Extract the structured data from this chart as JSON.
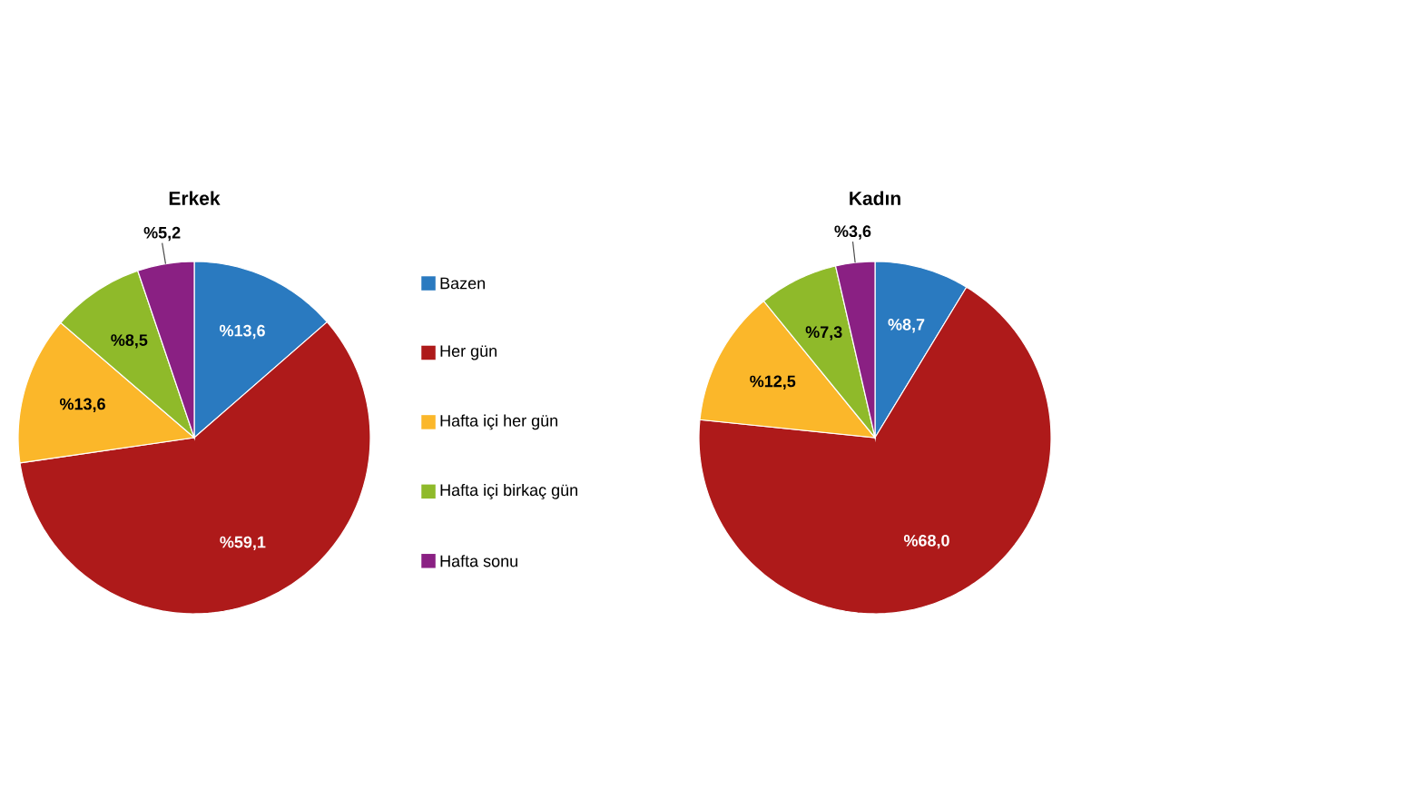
{
  "chart_data": [
    {
      "type": "pie",
      "title": "Erkek",
      "categories": [
        "Bazen",
        "Her gün",
        "Hafta içi her gün",
        "Hafta içi birkaç gün",
        "Hafta sonu"
      ],
      "values": [
        13.6,
        59.1,
        13.6,
        8.5,
        5.2
      ],
      "value_labels": [
        "%13,6",
        "%59,1",
        "%13,6",
        "%8,5",
        "%5,2"
      ],
      "colors": [
        "#2a7ac0",
        "#ae1a1a",
        "#fbb72a",
        "#8fba2a",
        "#8a2083"
      ],
      "legend": "right"
    },
    {
      "type": "pie",
      "title": "Kadın",
      "categories": [
        null,
        null,
        null,
        null,
        null
      ],
      "values": [
        8.7,
        68.0,
        12.5,
        7.3,
        3.6
      ],
      "value_labels": [
        "%8,7",
        "%68,0",
        "%12,5",
        "%7,3",
        "%3,6"
      ],
      "colors": [
        "#2a7ac0",
        "#ae1a1a",
        "#fbb72a",
        "#8fba2a",
        "#8a2083"
      ]
    }
  ]
}
